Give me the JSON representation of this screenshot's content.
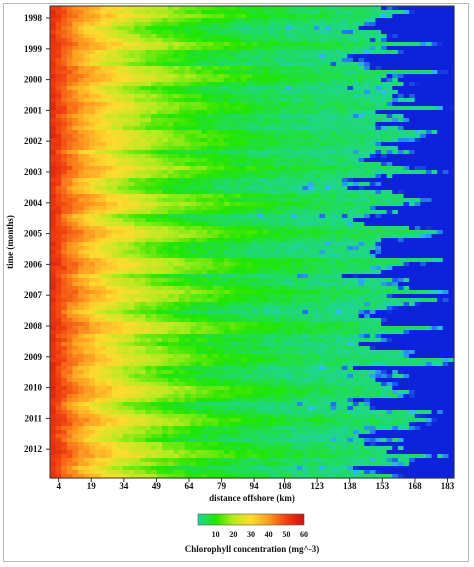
{
  "chart_data": {
    "type": "heatmap",
    "title": "",
    "xlabel": "distance offshore (km)",
    "ylabel": "time (months)",
    "x_ticks": [
      4,
      19,
      34,
      49,
      64,
      79,
      94,
      108,
      123,
      138,
      153,
      168,
      183
    ],
    "xlim": [
      0,
      186
    ],
    "y_ticks": [
      "1998",
      "1999",
      "2000",
      "2001",
      "2002",
      "2003",
      "2004",
      "2005",
      "2006",
      "2007",
      "2008",
      "2009",
      "2010",
      "2011",
      "2012"
    ],
    "colorbar": {
      "label": "Chlorophyll concentration (mg^-3)",
      "ticks": [
        10,
        20,
        30,
        40,
        50,
        60
      ],
      "range": [
        0,
        60
      ],
      "colors": [
        "#1fd49a",
        "#20e600",
        "#b8ea20",
        "#ffdb2f",
        "#ff9a20",
        "#f04010",
        "#cc1010"
      ]
    },
    "ocean_color": "#0e22dc",
    "grid": false
  }
}
